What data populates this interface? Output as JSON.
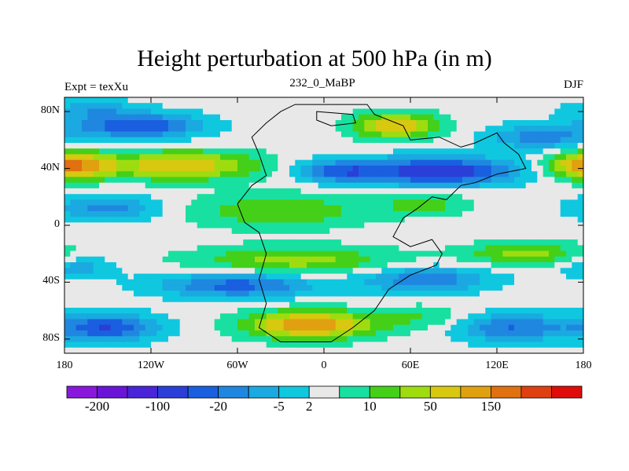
{
  "chart_data": {
    "type": "heatmap",
    "title": "Height perturbation at 500 hPa (in m)",
    "left_string": "Expt = texXu",
    "center_string": "232_0_MaBP",
    "right_string": "DJF",
    "x_range": [
      -180,
      180
    ],
    "y_range": [
      -90,
      90
    ],
    "x_ticks": [
      {
        "value": -180,
        "label": "180"
      },
      {
        "value": -120,
        "label": "120W"
      },
      {
        "value": -60,
        "label": "60W"
      },
      {
        "value": 0,
        "label": "0"
      },
      {
        "value": 60,
        "label": "60E"
      },
      {
        "value": 120,
        "label": "120E"
      },
      {
        "value": 180,
        "label": "180"
      }
    ],
    "y_ticks": [
      {
        "value": 80,
        "label": "80N"
      },
      {
        "value": 40,
        "label": "40N"
      },
      {
        "value": 0,
        "label": "0"
      },
      {
        "value": -40,
        "label": "40S"
      },
      {
        "value": -80,
        "label": "80S"
      }
    ],
    "colorbar": {
      "colors": [
        "#8a17dc",
        "#6a14d8",
        "#4a24d8",
        "#2a3fd8",
        "#1a5fe0",
        "#1f87e0",
        "#1aa9e0",
        "#10c7e0",
        "#e8e8e8",
        "#18e0a0",
        "#44d018",
        "#9edc10",
        "#d8c810",
        "#e0a010",
        "#e07010",
        "#e04010",
        "#e00c0c"
      ],
      "labels": [
        "-200",
        "-100",
        "-20",
        "-5",
        "2",
        "10",
        "50",
        "150"
      ],
      "label_after_box": [
        1,
        3,
        5,
        7,
        8,
        10,
        12,
        14
      ]
    },
    "continent_outline": "Pangaea supercontinent outline (thin black line) centered near 0 longitude"
  }
}
